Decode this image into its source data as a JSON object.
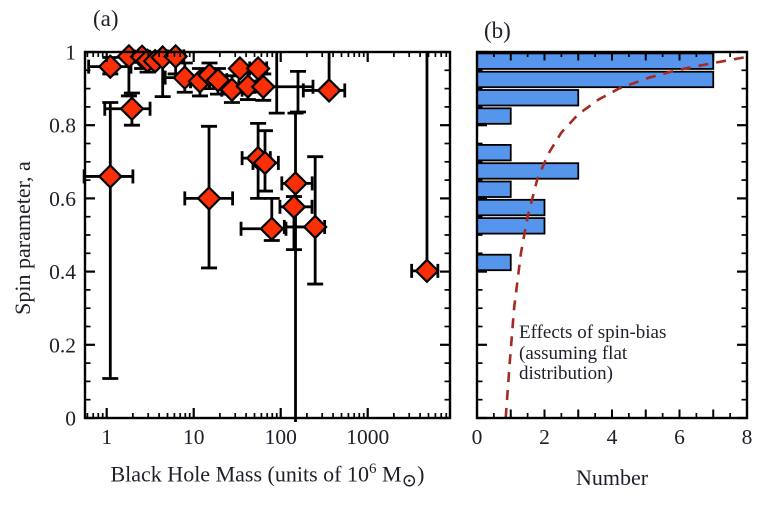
{
  "figure": {
    "panel_a_label": "(a)",
    "panel_b_label": "(b)",
    "colors": {
      "background": "#ffffff",
      "axis": "#000000",
      "text": "#1f1f2b",
      "diamond_fill": "#f93007",
      "diamond_outline": "#000000",
      "bar_fill": "#5596ec",
      "bar_outline": "#000000",
      "curve": "#a52a21"
    }
  },
  "chart_data": [
    {
      "id": "panel_a",
      "type": "scatter",
      "title": "(a)",
      "marker": "diamond",
      "x_scale": "log",
      "xlim": [
        0.56,
        8800
      ],
      "ylim": [
        0,
        1
      ],
      "ylabel": "Spin parameter, a",
      "xlabel": "Black Hole Mass (units of 10^6 M_sun)",
      "xlabel_parts": {
        "pre": "Black Hole Mass (units of 10",
        "sup": "6",
        "mid": " M",
        "sub": "⊙",
        "post": ")"
      },
      "x_ticks": [
        {
          "v": 1,
          "label": "1"
        },
        {
          "v": 10,
          "label": "10"
        },
        {
          "v": 100,
          "label": "100"
        },
        {
          "v": 1000,
          "label": "1000"
        }
      ],
      "y_ticks": [
        {
          "v": 1,
          "label": "1"
        },
        {
          "v": 0.8,
          "label": "0.8"
        },
        {
          "v": 0.6,
          "label": "0.6"
        },
        {
          "v": 0.4,
          "label": "0.4"
        },
        {
          "v": 0.2,
          "label": "0.2"
        },
        {
          "v": 0,
          "label": "0"
        }
      ],
      "points_format": [
        "mass_1e6Msun",
        "spin",
        "mass_lo",
        "mass_hi",
        "spin_lo",
        "spin_hi",
        "marker_shown"
      ],
      "points": [
        [
          1.1,
          0.96,
          0.62,
          1.9,
          0.94,
          0.985,
          1
        ],
        [
          1.8,
          0.988,
          null,
          null,
          0.88,
          null,
          1
        ],
        [
          2.55,
          0.987,
          2.1,
          3.1,
          0.955,
          null,
          1
        ],
        [
          2.95,
          0.976,
          null,
          null,
          0.945,
          null,
          1
        ],
        [
          3.6,
          0.975,
          null,
          null,
          null,
          null,
          1
        ],
        [
          4.4,
          0.985,
          null,
          null,
          0.878,
          null,
          1
        ],
        [
          6.2,
          0.988,
          5.0,
          7.7,
          0.94,
          null,
          1
        ],
        [
          7.9,
          0.93,
          4.7,
          13.4,
          0.89,
          0.97,
          1
        ],
        [
          11.8,
          0.92,
          9.2,
          15.2,
          0.88,
          0.955,
          1
        ],
        [
          15.2,
          0.937,
          12.0,
          19.3,
          0.9,
          0.97,
          1
        ],
        [
          19.0,
          0.923,
          15.0,
          24.0,
          0.885,
          0.955,
          1
        ],
        [
          27.5,
          0.897,
          21.0,
          36.0,
          0.862,
          0.935,
          1
        ],
        [
          34.0,
          0.955,
          null,
          null,
          null,
          null,
          1
        ],
        [
          42.0,
          0.906,
          33.0,
          53.0,
          0.87,
          0.945,
          1
        ],
        [
          55.0,
          0.955,
          44.0,
          69.0,
          0.92,
          null,
          1
        ],
        [
          63.0,
          0.905,
          50.0,
          235.0,
          0.868,
          0.94,
          1
        ],
        [
          90.0,
          0.998,
          null,
          null,
          0.833,
          null,
          0
        ],
        [
          158.0,
          0.892,
          null,
          null,
          0.836,
          0.947,
          0
        ],
        [
          360.0,
          0.895,
          182.0,
          545.0,
          null,
          1.0,
          1
        ],
        [
          1.1,
          0.66,
          0.55,
          2.0,
          0.108,
          0.862,
          1
        ],
        [
          1.95,
          0.845,
          0.95,
          3.15,
          0.8,
          0.888,
          1
        ],
        [
          15.0,
          0.6,
          7.9,
          28.0,
          0.41,
          0.797,
          1
        ],
        [
          55.0,
          0.71,
          36.0,
          76.0,
          0.6,
          0.805,
          1
        ],
        [
          66.0,
          0.697,
          48.0,
          94.0,
          0.62,
          0.785,
          1
        ],
        [
          148.0,
          0.641,
          103.0,
          230.0,
          0.0,
          0.833,
          1
        ],
        [
          142.0,
          0.577,
          98.0,
          229.0,
          0.46,
          0.605,
          1
        ],
        [
          79.0,
          0.517,
          35.0,
          115.0,
          0.485,
          0.6,
          1
        ],
        [
          249.0,
          0.522,
          110.0,
          320.0,
          0.366,
          0.714,
          1
        ],
        [
          4800.0,
          0.402,
          3200.0,
          6400.0,
          null,
          1.0,
          1
        ]
      ]
    },
    {
      "id": "panel_b",
      "type": "bar",
      "orientation": "horizontal",
      "title": "(b)",
      "xlabel": "Number",
      "xlim": [
        0,
        8
      ],
      "ylim": [
        0,
        1
      ],
      "x_ticks": [
        {
          "v": 0,
          "label": "0"
        },
        {
          "v": 2,
          "label": "2"
        },
        {
          "v": 4,
          "label": "4"
        },
        {
          "v": 6,
          "label": "6"
        },
        {
          "v": 8,
          "label": "8"
        }
      ],
      "bin_width": 0.05,
      "bins": [
        {
          "lo": 0.4,
          "hi": 0.45,
          "count": 1
        },
        {
          "lo": 0.45,
          "hi": 0.5,
          "count": 0
        },
        {
          "lo": 0.5,
          "hi": 0.55,
          "count": 2
        },
        {
          "lo": 0.55,
          "hi": 0.6,
          "count": 2
        },
        {
          "lo": 0.6,
          "hi": 0.65,
          "count": 1
        },
        {
          "lo": 0.65,
          "hi": 0.7,
          "count": 3
        },
        {
          "lo": 0.7,
          "hi": 0.75,
          "count": 1
        },
        {
          "lo": 0.75,
          "hi": 0.8,
          "count": 0
        },
        {
          "lo": 0.8,
          "hi": 0.85,
          "count": 1
        },
        {
          "lo": 0.85,
          "hi": 0.9,
          "count": 3
        },
        {
          "lo": 0.9,
          "hi": 0.95,
          "count": 7
        },
        {
          "lo": 0.95,
          "hi": 1.0,
          "count": 7
        }
      ],
      "curve": {
        "style": "dashed",
        "label_lines": [
          "Effects of spin-bias",
          "(assuming flat",
          "distribution)"
        ],
        "points_format": [
          "spin",
          "number"
        ],
        "points": [
          [
            0.0,
            0.85
          ],
          [
            0.15,
            0.97
          ],
          [
            0.3,
            1.1
          ],
          [
            0.45,
            1.3
          ],
          [
            0.55,
            1.5
          ],
          [
            0.65,
            1.78
          ],
          [
            0.72,
            2.1
          ],
          [
            0.78,
            2.5
          ],
          [
            0.83,
            3.0
          ],
          [
            0.87,
            3.6
          ],
          [
            0.9,
            4.2
          ],
          [
            0.93,
            5.1
          ],
          [
            0.95,
            5.9
          ],
          [
            0.97,
            7.0
          ],
          [
            0.985,
            7.9
          ],
          [
            0.997,
            8.7
          ]
        ]
      }
    }
  ]
}
